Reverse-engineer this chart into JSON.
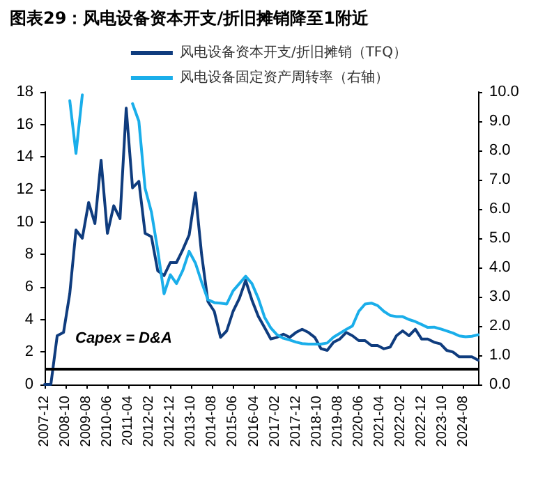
{
  "chart_data": {
    "type": "line",
    "title": "图表29：风电设备资本开支/折旧摊销降至1附近",
    "x": [
      "2007-12",
      "2008-03",
      "2008-06",
      "2008-09",
      "2008-12",
      "2009-03",
      "2009-06",
      "2009-09",
      "2009-12",
      "2010-03",
      "2010-06",
      "2010-09",
      "2010-12",
      "2011-03",
      "2011-06",
      "2011-09",
      "2011-12",
      "2012-03",
      "2012-06",
      "2012-09",
      "2012-12",
      "2013-03",
      "2013-06",
      "2013-09",
      "2013-12",
      "2014-03",
      "2014-06",
      "2014-09",
      "2014-12",
      "2015-03",
      "2015-06",
      "2015-09",
      "2015-12",
      "2016-03",
      "2016-06",
      "2016-09",
      "2016-12",
      "2017-03",
      "2017-06",
      "2017-09",
      "2017-12",
      "2018-03",
      "2018-06",
      "2018-09",
      "2018-12",
      "2019-03",
      "2019-06",
      "2019-09",
      "2019-12",
      "2020-03",
      "2020-06",
      "2020-09",
      "2020-12",
      "2021-03",
      "2021-06",
      "2021-09",
      "2021-12",
      "2022-03",
      "2022-06",
      "2022-09",
      "2022-12",
      "2023-03",
      "2023-06",
      "2023-09",
      "2023-12",
      "2024-03",
      "2024-06",
      "2024-09",
      "2024-12",
      "2025-03"
    ],
    "series": [
      {
        "name": "风电设备资本开支/折旧摊销（TFQ）",
        "color": "#0f3c7e",
        "values": [
          0,
          0,
          3.0,
          3.2,
          5.6,
          9.5,
          9.0,
          11.2,
          9.9,
          13.8,
          9.3,
          11.0,
          10.2,
          17.0,
          12.1,
          12.5,
          9.3,
          9.1,
          7.0,
          6.7,
          7.5,
          7.5,
          8.3,
          9.2,
          11.8,
          8.0,
          5.1,
          4.5,
          2.9,
          3.3,
          4.5,
          5.3,
          6.4,
          5.2,
          4.2,
          3.5,
          2.8,
          2.9,
          3.1,
          2.9,
          3.2,
          3.4,
          3.2,
          2.9,
          2.2,
          2.1,
          2.6,
          2.8,
          3.2,
          3.0,
          2.7,
          2.7,
          2.4,
          2.4,
          2.2,
          2.3,
          3.0,
          3.3,
          3.0,
          3.4,
          2.8,
          2.8,
          2.6,
          2.5,
          2.1,
          2.0,
          1.7,
          1.7,
          1.7,
          1.5
        ]
      },
      {
        "name": "风电设备固定资产周转率（右轴）",
        "color": "#1aaeea",
        "axis": "y2",
        "values": [
          null,
          null,
          null,
          null,
          9.7,
          7.9,
          9.9,
          null,
          null,
          null,
          null,
          null,
          null,
          null,
          9.6,
          9.0,
          6.7,
          5.9,
          4.6,
          3.1,
          3.75,
          3.45,
          3.9,
          4.55,
          4.15,
          3.5,
          2.9,
          2.8,
          2.78,
          2.75,
          3.2,
          3.45,
          3.7,
          3.45,
          2.95,
          2.3,
          1.93,
          1.7,
          1.58,
          1.52,
          1.45,
          1.4,
          1.38,
          1.38,
          1.38,
          1.42,
          1.62,
          1.75,
          1.88,
          2.0,
          2.5,
          2.75,
          2.78,
          2.7,
          2.5,
          2.36,
          2.32,
          2.32,
          2.22,
          2.15,
          2.05,
          1.95,
          1.96,
          1.9,
          1.83,
          1.76,
          1.66,
          1.63,
          1.65,
          1.7
        ]
      }
    ],
    "xlim": [
      "2007-12",
      "2025-03"
    ],
    "xticks": [
      "2007-12",
      "2008-10",
      "2009-08",
      "2010-06",
      "2011-04",
      "2012-02",
      "2012-12",
      "2013-10",
      "2014-08",
      "2015-06",
      "2016-04",
      "2017-02",
      "2017-12",
      "2018-10",
      "2019-08",
      "2020-06",
      "2021-04",
      "2022-02",
      "2022-12",
      "2023-10",
      "2024-08"
    ],
    "ylim": [
      0,
      18
    ],
    "yticks": [
      0,
      2,
      4,
      6,
      8,
      10,
      12,
      14,
      16,
      18
    ],
    "y2lim": [
      0,
      10
    ],
    "y2ticks": [
      {
        "value": 0,
        "label": "0.0"
      },
      {
        "value": 1,
        "label": "1.0"
      },
      {
        "value": 2,
        "label": "2.0"
      },
      {
        "value": 3,
        "label": "3.0"
      },
      {
        "value": 4,
        "label": "4.0"
      },
      {
        "value": 5,
        "label": "5.0"
      },
      {
        "value": 6,
        "label": "6.0"
      },
      {
        "value": 7,
        "label": "7.0"
      },
      {
        "value": 8,
        "label": "8.0"
      },
      {
        "value": 9,
        "label": "9.0"
      },
      {
        "value": 10,
        "label": "10.0"
      }
    ],
    "ref_lines": [
      {
        "axis": "y",
        "value": 1,
        "label": "Capex = D&A",
        "color": "#000000",
        "line_style": "solid"
      }
    ],
    "legend": "top",
    "grid": false,
    "marker": "none",
    "line_style": "solid"
  }
}
